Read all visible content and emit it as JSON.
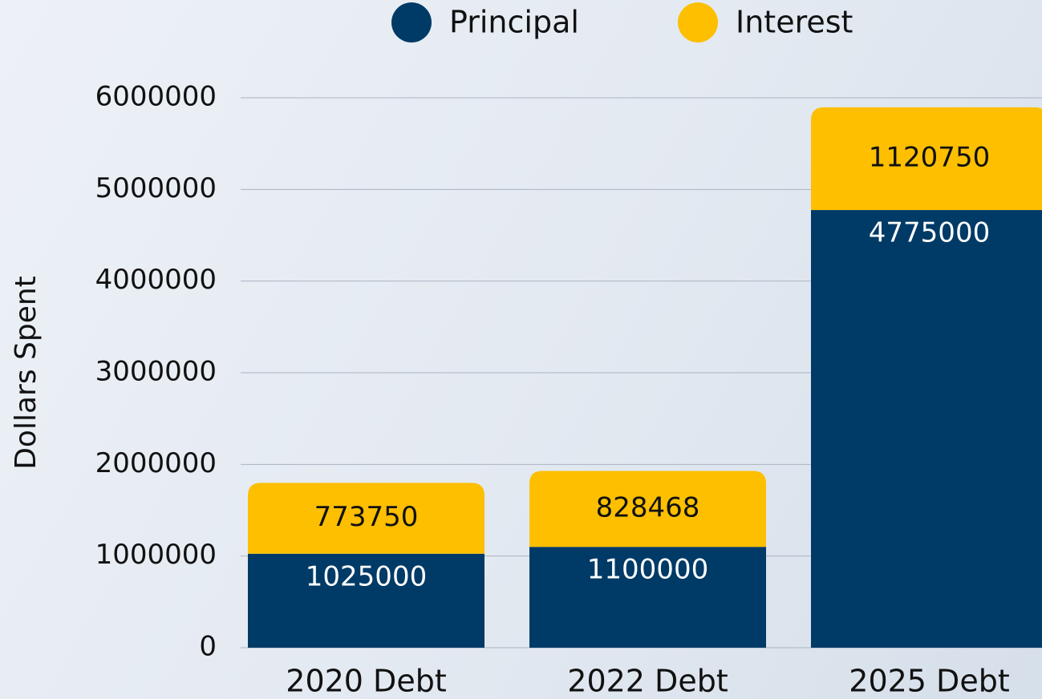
{
  "chart_data": {
    "type": "stacked_bar",
    "y_label": "Dollars Spent",
    "categories": [
      "2020 Debt",
      "2022 Debt",
      "2025 Debt"
    ],
    "series": [
      {
        "name": "Principal",
        "color": "#003a66",
        "values": [
          1025000,
          1100000,
          4775000
        ]
      },
      {
        "name": "Interest",
        "color": "#fdbf00",
        "values": [
          773750,
          828468,
          1120750
        ]
      }
    ],
    "ylim": [
      0,
      6000000
    ],
    "yticks": [
      0,
      1000000,
      2000000,
      3000000,
      4000000,
      5000000,
      6000000
    ],
    "grid": true,
    "legend": "top"
  }
}
